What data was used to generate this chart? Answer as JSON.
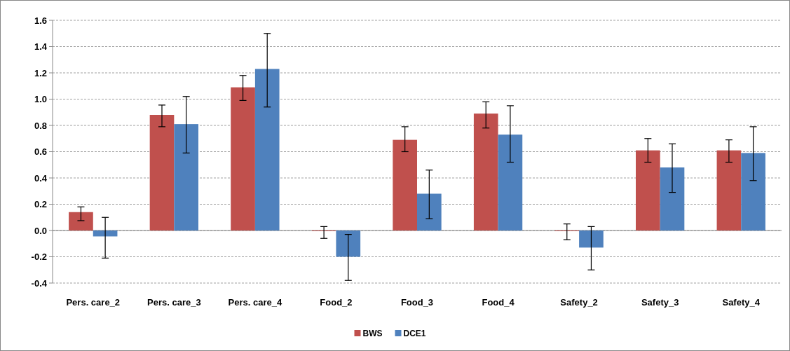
{
  "chart_data": {
    "type": "bar",
    "categories": [
      "Pers. care_2",
      "Pers. care_3",
      "Pers. care_4",
      "Food_2",
      "Food_3",
      "Food_4",
      "Safety_2",
      "Safety_3",
      "Safety_4"
    ],
    "series": [
      {
        "name": "BWS",
        "color": "#c0504d",
        "values": [
          0.14,
          0.88,
          1.09,
          -0.005,
          0.69,
          0.89,
          -0.005,
          0.61,
          0.61
        ],
        "errors": [
          [
            0.075,
            0.18
          ],
          [
            0.79,
            0.955
          ],
          [
            0.99,
            1.18
          ],
          [
            -0.06,
            0.03
          ],
          [
            0.6,
            0.79
          ],
          [
            0.78,
            0.98
          ],
          [
            -0.07,
            0.05
          ],
          [
            0.52,
            0.7
          ],
          [
            0.52,
            0.69
          ]
        ]
      },
      {
        "name": "DCE1",
        "color": "#4f81bd",
        "values": [
          -0.045,
          0.81,
          1.23,
          -0.2,
          0.28,
          0.73,
          -0.13,
          0.48,
          0.59
        ],
        "errors": [
          [
            -0.21,
            0.1
          ],
          [
            0.59,
            1.02
          ],
          [
            0.94,
            1.5
          ],
          [
            -0.38,
            -0.03
          ],
          [
            0.09,
            0.46
          ],
          [
            0.52,
            0.95
          ],
          [
            -0.3,
            0.03
          ],
          [
            0.29,
            0.66
          ],
          [
            0.38,
            0.79
          ]
        ]
      }
    ],
    "ylim": [
      -0.4,
      1.6
    ],
    "yticks": [
      {
        "value": -0.4,
        "label": "-0.4"
      },
      {
        "value": -0.2,
        "label": "-0.2"
      },
      {
        "value": 0,
        "label": "0.0"
      },
      {
        "value": 0.2,
        "label": "0.2"
      },
      {
        "value": 0.4,
        "label": "0.4"
      },
      {
        "value": 0.6,
        "label": "0.6"
      },
      {
        "value": 0.8,
        "label": "0.8"
      },
      {
        "value": 1,
        "label": "1.0"
      },
      {
        "value": 1.2,
        "label": "1.2"
      },
      {
        "value": 1.4,
        "label": "1.4"
      },
      {
        "value": 1.6,
        "label": "1.6"
      }
    ],
    "grid": "y",
    "legend": "bottom"
  }
}
